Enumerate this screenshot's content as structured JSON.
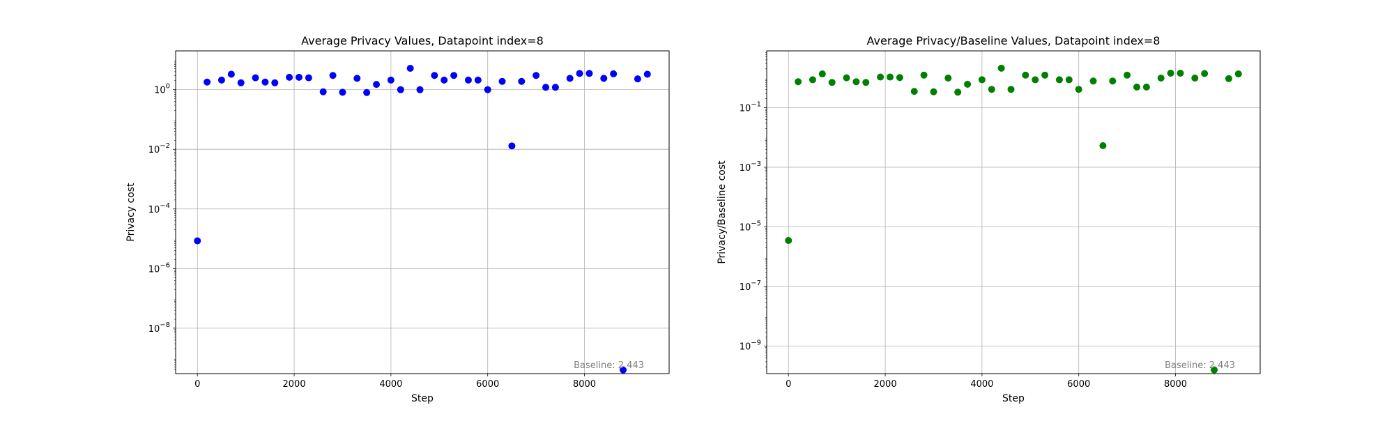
{
  "chart_data": [
    {
      "type": "scatter",
      "title": "Average Privacy Values, Datapoint index=8",
      "xlabel": "Step",
      "ylabel": "Privacy cost",
      "yscale": "log",
      "xlim": [
        -450,
        9750
      ],
      "ylim": [
        3e-10,
        20
      ],
      "xticks": [
        0,
        2000,
        4000,
        6000,
        8000
      ],
      "xtick_labels": [
        "0",
        "2000",
        "4000",
        "6000",
        "8000"
      ],
      "yticks": [
        1e-08,
        1e-06,
        0.0001,
        0.01,
        1
      ],
      "ytick_labels": [
        {
          "base": "10",
          "exp": "−8"
        },
        {
          "base": "10",
          "exp": "−6"
        },
        {
          "base": "10",
          "exp": "−4"
        },
        {
          "base": "10",
          "exp": "−2"
        },
        {
          "base": "10",
          "exp": "0"
        }
      ],
      "grid": true,
      "color": "#0000ff",
      "annotation": "Baseline: 2.443",
      "series": [
        {
          "x": [
            0,
            200,
            500,
            700,
            900,
            1200,
            1400,
            1600,
            1900,
            2100,
            2300,
            2600,
            2800,
            3000,
            3300,
            3500,
            3700,
            4000,
            4200,
            4400,
            4600,
            4900,
            5100,
            5300,
            5600,
            5800,
            6000,
            6300,
            6500,
            6700,
            7000,
            7200,
            7400,
            7700,
            7900,
            8100,
            8400,
            8600,
            8800,
            9100,
            9300
          ],
          "y": [
            8.5e-06,
            1.8,
            2.1,
            3.3,
            1.7,
            2.5,
            1.8,
            1.7,
            2.6,
            2.6,
            2.5,
            0.85,
            3.0,
            0.82,
            2.4,
            0.8,
            1.5,
            2.1,
            1.0,
            5.2,
            1.0,
            3.0,
            2.1,
            3.0,
            2.1,
            2.1,
            1.0,
            1.9,
            0.013,
            1.9,
            3.0,
            1.2,
            1.2,
            2.4,
            3.5,
            3.5,
            2.4,
            3.4,
            4e-10,
            2.3,
            3.3
          ]
        }
      ]
    },
    {
      "type": "scatter",
      "title": "Average Privacy/Baseline Values, Datapoint index=8",
      "xlabel": "Step",
      "ylabel": "Privacy/Baseline cost",
      "yscale": "log",
      "xlim": [
        -450,
        9750
      ],
      "ylim": [
        1.2e-10,
        8
      ],
      "xticks": [
        0,
        2000,
        4000,
        6000,
        8000
      ],
      "xtick_labels": [
        "0",
        "2000",
        "4000",
        "6000",
        "8000"
      ],
      "yticks": [
        1e-09,
        1e-07,
        1e-05,
        0.001,
        0.1
      ],
      "ytick_labels": [
        {
          "base": "10",
          "exp": "−9"
        },
        {
          "base": "10",
          "exp": "−7"
        },
        {
          "base": "10",
          "exp": "−5"
        },
        {
          "base": "10",
          "exp": "−3"
        },
        {
          "base": "10",
          "exp": "−1"
        }
      ],
      "grid": true,
      "color": "#008000",
      "annotation": "Baseline: 2.443",
      "series": [
        {
          "x": [
            0,
            200,
            500,
            700,
            900,
            1200,
            1400,
            1600,
            1900,
            2100,
            2300,
            2600,
            2800,
            3000,
            3300,
            3500,
            3700,
            4000,
            4200,
            4400,
            4600,
            4900,
            5100,
            5300,
            5600,
            5800,
            6000,
            6300,
            6500,
            6700,
            7000,
            7200,
            7400,
            7700,
            7900,
            8100,
            8400,
            8600,
            8800,
            9100,
            9300
          ],
          "y": [
            3.5e-06,
            0.74,
            0.86,
            1.35,
            0.7,
            1.0,
            0.74,
            0.7,
            1.06,
            1.06,
            1.02,
            0.35,
            1.23,
            0.34,
            0.98,
            0.33,
            0.61,
            0.86,
            0.41,
            2.1,
            0.41,
            1.23,
            0.86,
            1.23,
            0.86,
            0.86,
            0.41,
            0.78,
            0.0053,
            0.78,
            1.23,
            0.49,
            0.49,
            0.98,
            1.43,
            1.43,
            0.98,
            1.39,
            1.6e-10,
            0.94,
            1.35
          ]
        }
      ]
    }
  ]
}
